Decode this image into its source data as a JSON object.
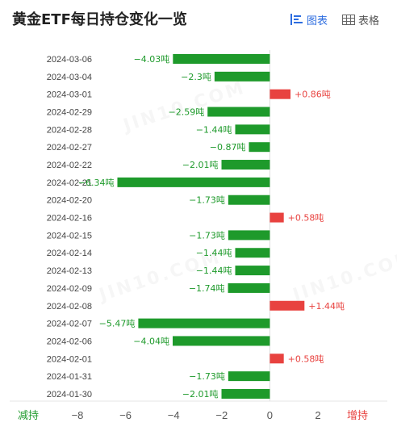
{
  "header": {
    "title": "黄金ETF每日持仓变化一览",
    "tab_chart_label": "图表",
    "tab_table_label": "表格",
    "active_tab": "chart"
  },
  "watermark_text": "JIN10.COM",
  "colors": {
    "increase": "#e8423f",
    "decrease": "#1e9a2b",
    "active_tab": "#2d6de0",
    "inactive_tab": "#555555",
    "axis_text": "#555555",
    "date_text": "#444444"
  },
  "chart_data": {
    "type": "bar",
    "orientation": "horizontal",
    "unit": "吨",
    "categories": [
      "2024-03-06",
      "2024-03-04",
      "2024-03-01",
      "2024-02-29",
      "2024-02-28",
      "2024-02-27",
      "2024-02-22",
      "2024-02-21",
      "2024-02-20",
      "2024-02-16",
      "2024-02-15",
      "2024-02-14",
      "2024-02-13",
      "2024-02-09",
      "2024-02-08",
      "2024-02-07",
      "2024-02-06",
      "2024-02-01",
      "2024-01-31",
      "2024-01-30"
    ],
    "values": [
      -4.03,
      -2.3,
      0.86,
      -2.59,
      -1.44,
      -0.87,
      -2.01,
      -6.34,
      -1.73,
      0.58,
      -1.73,
      -1.44,
      -1.44,
      -1.74,
      1.44,
      -5.47,
      -4.04,
      0.58,
      -1.73,
      -2.01
    ],
    "data_labels": [
      "−4.03吨",
      "−2.3吨",
      "+0.86吨",
      "−2.59吨",
      "−1.44吨",
      "−0.87吨",
      "−2.01吨",
      "−6.34吨",
      "−1.73吨",
      "+0.58吨",
      "−1.73吨",
      "−1.44吨",
      "−1.44吨",
      "−1.74吨",
      "+1.44吨",
      "−5.47吨",
      "−4.04吨",
      "+0.58吨",
      "−1.73吨",
      "−2.01吨"
    ],
    "xlim": [
      -8,
      2
    ],
    "x_ticks": [
      -8,
      -6,
      -4,
      -2,
      0,
      2
    ],
    "x_tick_labels": [
      "−8",
      "−6",
      "−4",
      "−2",
      "0",
      "2"
    ],
    "axis_left_label": "减持",
    "axis_right_label": "增持"
  }
}
